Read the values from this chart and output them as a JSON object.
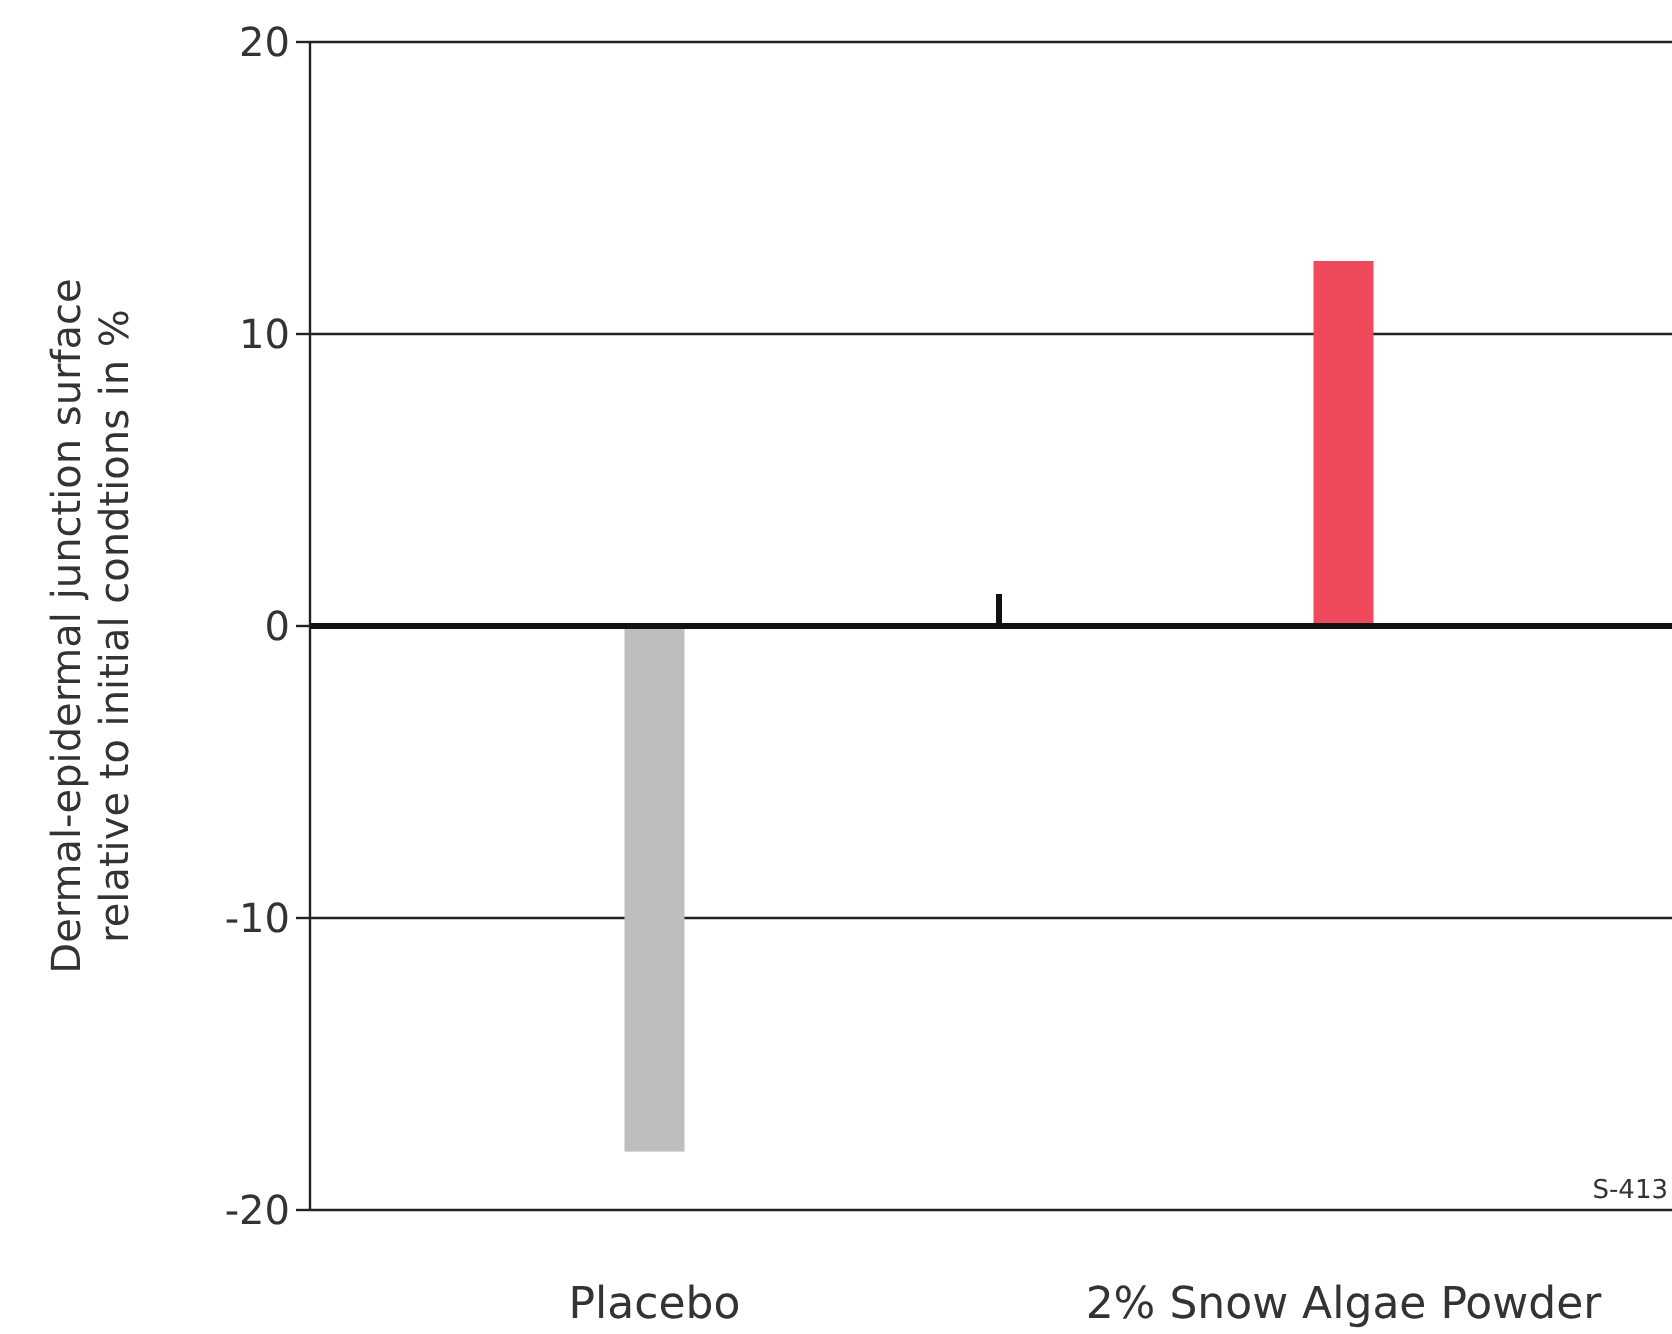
{
  "chart_data": {
    "type": "bar",
    "ylabel": "Dermal-epidermal junction surface\nrelative to initial condtions in %",
    "categories": [
      "Placebo",
      "2% Snow Algae Powder"
    ],
    "values": [
      -18,
      12.5
    ],
    "colors": [
      "#bebebe",
      "#ee4a5c"
    ],
    "ylim": [
      -20,
      20
    ],
    "yticks": [
      -20,
      -10,
      0,
      10,
      20
    ],
    "grid": "y",
    "annotations": [
      "S-413"
    ]
  }
}
